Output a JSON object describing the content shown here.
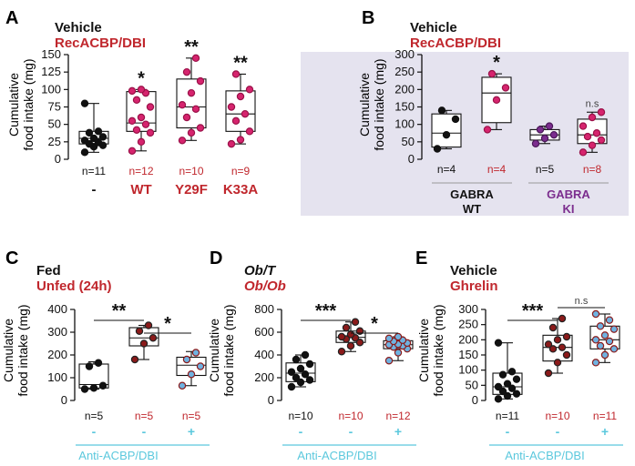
{
  "colors": {
    "black": "#111111",
    "red": "#c0272d",
    "magenta": "#d6246e",
    "purple": "#7b2d8e",
    "cyan": "#5bc8dd",
    "shade": "#e5e3ef",
    "point_dark_red": "#8b1a1a",
    "point_blue_edge": "#3aa0c8",
    "point_light_blue": "#6fb2e0"
  },
  "chart_data": [
    {
      "id": "A",
      "panel_letter": "A",
      "type": "box",
      "legend": [
        {
          "label": "Vehicle",
          "color": "black"
        },
        {
          "label": "RecACBP/DBI",
          "color": "red"
        }
      ],
      "ylabel_line1": "Cumulative",
      "ylabel_line2": "food intake (mg)",
      "ylim": [
        0,
        150
      ],
      "yticks": [
        0,
        25,
        50,
        75,
        100,
        125,
        150
      ],
      "ytick_labels": [
        "0",
        "25",
        "50",
        "75",
        "100",
        "125",
        "150"
      ],
      "groups": [
        {
          "n_label": "n=11",
          "n_color": "black",
          "label": "-",
          "label_color": "black",
          "min": 10,
          "q1": 22,
          "median": 30,
          "q3": 40,
          "max": 80,
          "sig": "",
          "point_color": "black",
          "points": [
            10,
            18,
            20,
            22,
            24,
            27,
            30,
            32,
            38,
            40,
            80
          ]
        },
        {
          "n_label": "n=12",
          "n_color": "red",
          "label": "WT",
          "label_color": "red",
          "min": 12,
          "q1": 40,
          "median": 52,
          "q3": 97,
          "max": 100,
          "sig": "*",
          "point_color": "magenta",
          "points": [
            12,
            25,
            38,
            42,
            50,
            55,
            60,
            75,
            85,
            95,
            98,
            100
          ]
        },
        {
          "n_label": "n=10",
          "n_color": "red",
          "label": "Y29F",
          "label_color": "red",
          "min": 27,
          "q1": 45,
          "median": 75,
          "q3": 115,
          "max": 145,
          "sig": "**",
          "point_color": "magenta",
          "points": [
            27,
            38,
            45,
            60,
            72,
            78,
            95,
            112,
            125,
            145
          ]
        },
        {
          "n_label": "n=9",
          "n_color": "red",
          "label": "K33A",
          "label_color": "red",
          "min": 22,
          "q1": 40,
          "median": 65,
          "q3": 98,
          "max": 122,
          "sig": "**",
          "point_color": "magenta",
          "points": [
            22,
            28,
            40,
            55,
            65,
            75,
            90,
            100,
            122
          ]
        }
      ]
    },
    {
      "id": "B",
      "panel_letter": "B",
      "type": "box",
      "legend": [
        {
          "label": "Vehicle",
          "color": "black"
        },
        {
          "label": "RecACBP/DBI",
          "color": "red"
        }
      ],
      "ylabel_line1": "Cumulative",
      "ylabel_line2": "food intake (mg)",
      "ylim": [
        0,
        300
      ],
      "yticks": [
        0,
        50,
        100,
        150,
        200,
        250,
        300
      ],
      "ytick_labels": [
        "0",
        "50",
        "100",
        "150",
        "200",
        "250",
        "300"
      ],
      "groups": [
        {
          "n_label": "n=4",
          "n_color": "black",
          "label": "",
          "min": 30,
          "q1": 35,
          "median": 75,
          "q3": 130,
          "max": 140,
          "sig": "",
          "point_color": "black",
          "points": [
            30,
            70,
            115,
            140
          ]
        },
        {
          "n_label": "n=4",
          "n_color": "red",
          "label": "",
          "min": 85,
          "q1": 105,
          "median": 190,
          "q3": 235,
          "max": 245,
          "sig": "*",
          "point_color": "magenta",
          "points": [
            85,
            170,
            205,
            245
          ]
        },
        {
          "n_label": "n=5",
          "n_color": "black",
          "label": "",
          "min": 45,
          "q1": 55,
          "median": 70,
          "q3": 85,
          "max": 95,
          "sig": "",
          "point_color": "purple",
          "points": [
            45,
            60,
            70,
            85,
            95
          ]
        },
        {
          "n_label": "n=8",
          "n_color": "red",
          "label": "",
          "min": 20,
          "q1": 45,
          "median": 70,
          "q3": 115,
          "max": 135,
          "sig": "n.s",
          "point_color": "magenta",
          "points": [
            20,
            40,
            55,
            65,
            75,
            95,
            120,
            135
          ]
        }
      ],
      "genotypes": [
        {
          "line1": "GABRA",
          "line2": "WT",
          "color": "black"
        },
        {
          "line1": "GABRA",
          "line2": "KI",
          "color": "purple"
        }
      ]
    },
    {
      "id": "C",
      "panel_letter": "C",
      "type": "box",
      "legend": [
        {
          "label": "Fed",
          "color": "black"
        },
        {
          "label": "Unfed (24h)",
          "color": "red"
        }
      ],
      "ylabel_line1": "Cumulative",
      "ylabel_line2": "food intake (mg)",
      "ylim": [
        0,
        400
      ],
      "yticks": [
        0,
        100,
        200,
        300,
        400
      ],
      "ytick_labels": [
        "0",
        "100",
        "200",
        "300",
        "400"
      ],
      "groups": [
        {
          "n_label": "n=5",
          "n_color": "black",
          "label": "-",
          "label_color": "cyan",
          "min": 50,
          "q1": 55,
          "median": 70,
          "q3": 160,
          "max": 170,
          "sig": "",
          "point_color": "black",
          "points": [
            50,
            55,
            65,
            150,
            165
          ]
        },
        {
          "n_label": "n=5",
          "n_color": "red",
          "label": "-",
          "label_color": "cyan",
          "min": 180,
          "q1": 240,
          "median": 275,
          "q3": 320,
          "max": 330,
          "sig": "",
          "point_color": "dark_red",
          "points": [
            180,
            250,
            275,
            305,
            330
          ]
        },
        {
          "n_label": "n=5",
          "n_color": "red",
          "label": "+",
          "label_color": "cyan",
          "min": 65,
          "q1": 110,
          "median": 155,
          "q3": 190,
          "max": 215,
          "sig": "",
          "point_color": "blue_red",
          "points": [
            65,
            115,
            150,
            180,
            210
          ]
        }
      ],
      "brackets": [
        {
          "from": 0,
          "to": 1,
          "label": "**"
        },
        {
          "from": 1,
          "to": 2,
          "label": "*"
        }
      ],
      "treatment": "Anti-ACBP/DBI"
    },
    {
      "id": "D",
      "panel_letter": "D",
      "type": "box",
      "legend": [
        {
          "label": "Ob/T",
          "color": "black",
          "italic": true
        },
        {
          "label": "Ob/Ob",
          "color": "red",
          "italic": true
        }
      ],
      "ylabel_line1": "Cumulative",
      "ylabel_line2": "food intake (mg)",
      "ylim": [
        0,
        800
      ],
      "yticks": [
        0,
        200,
        400,
        600,
        800
      ],
      "ytick_labels": [
        "0",
        "200",
        "400",
        "600",
        "800"
      ],
      "groups": [
        {
          "n_label": "n=10",
          "n_color": "black",
          "label": "-",
          "label_color": "cyan",
          "min": 120,
          "q1": 165,
          "median": 240,
          "q3": 330,
          "max": 400,
          "sig": "",
          "point_color": "black",
          "points": [
            120,
            160,
            180,
            200,
            230,
            250,
            280,
            320,
            360,
            400
          ]
        },
        {
          "n_label": "n=10",
          "n_color": "red",
          "label": "-",
          "label_color": "cyan",
          "min": 430,
          "q1": 510,
          "median": 555,
          "q3": 610,
          "max": 690,
          "sig": "",
          "point_color": "dark_red",
          "points": [
            430,
            480,
            510,
            540,
            550,
            560,
            580,
            610,
            640,
            690
          ]
        },
        {
          "n_label": "n=12",
          "n_color": "red",
          "label": "+",
          "label_color": "cyan",
          "min": 350,
          "q1": 455,
          "median": 490,
          "q3": 525,
          "max": 560,
          "sig": "",
          "point_color": "blue_red",
          "points": [
            350,
            420,
            455,
            470,
            480,
            490,
            495,
            505,
            520,
            530,
            545,
            560
          ]
        }
      ],
      "brackets": [
        {
          "from": 0,
          "to": 1,
          "label": "***"
        },
        {
          "from": 1,
          "to": 2,
          "label": "*"
        }
      ],
      "treatment": "Anti-ACBP/DBI"
    },
    {
      "id": "E",
      "panel_letter": "E",
      "type": "box",
      "legend": [
        {
          "label": "Vehicle",
          "color": "black"
        },
        {
          "label": "Ghrelin",
          "color": "red"
        }
      ],
      "ylabel_line1": "Cumulative",
      "ylabel_line2": "food intake (mg)",
      "ylim": [
        0,
        300
      ],
      "yticks": [
        0,
        50,
        100,
        150,
        200,
        250,
        300
      ],
      "ytick_labels": [
        "0",
        "50",
        "100",
        "150",
        "200",
        "250",
        "300"
      ],
      "groups": [
        {
          "n_label": "n=11",
          "n_color": "black",
          "label": "-",
          "label_color": "cyan",
          "min": 5,
          "q1": 20,
          "median": 45,
          "q3": 90,
          "max": 190,
          "sig": "",
          "point_color": "black",
          "points": [
            5,
            15,
            22,
            30,
            40,
            45,
            55,
            70,
            85,
            95,
            190
          ]
        },
        {
          "n_label": "n=10",
          "n_color": "red",
          "label": "-",
          "label_color": "cyan",
          "min": 90,
          "q1": 130,
          "median": 175,
          "q3": 215,
          "max": 270,
          "sig": "",
          "point_color": "dark_red",
          "points": [
            90,
            125,
            150,
            170,
            175,
            185,
            200,
            210,
            240,
            270
          ]
        },
        {
          "n_label": "n=11",
          "n_color": "red",
          "label": "+",
          "label_color": "cyan",
          "min": 125,
          "q1": 170,
          "median": 200,
          "q3": 245,
          "max": 285,
          "sig": "",
          "point_color": "blue_red",
          "points": [
            125,
            150,
            170,
            180,
            195,
            200,
            215,
            235,
            245,
            265,
            285
          ]
        }
      ],
      "brackets": [
        {
          "from": 0,
          "to": 1,
          "label": "***"
        },
        {
          "from": 1,
          "to": 2,
          "label": "n.s"
        }
      ],
      "treatment": "Anti-ACBP/DBI"
    }
  ]
}
